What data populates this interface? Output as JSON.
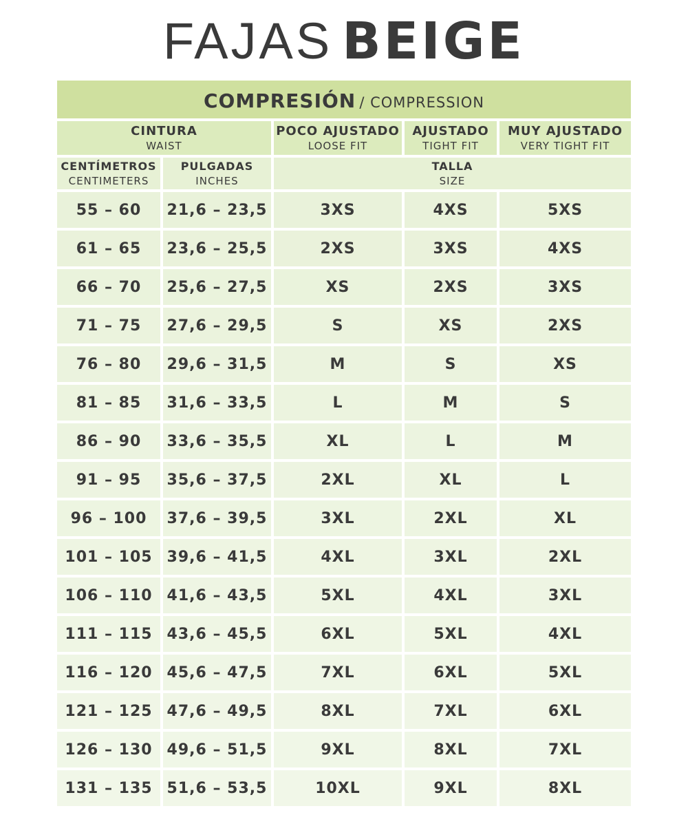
{
  "title": {
    "light": "FAJAS",
    "bold": "BEIGE"
  },
  "compression": {
    "es": "COMPRESIÓN",
    "en": "/ COMPRESSION"
  },
  "headers": {
    "waist": {
      "es": "CINTURA",
      "en": "WAIST"
    },
    "loose": {
      "es": "POCO AJUSTADO",
      "en": "LOOSE FIT"
    },
    "tight": {
      "es": "AJUSTADO",
      "en": "TIGHT FIT"
    },
    "very_tight": {
      "es": "MUY AJUSTADO",
      "en": "VERY TIGHT FIT"
    },
    "cm": {
      "es": "CENTÍMETROS",
      "en": "CENTIMETERS"
    },
    "in": {
      "es": "PULGADAS",
      "en": "INCHES"
    },
    "size": {
      "es": "TALLA",
      "en": "SIZE"
    }
  },
  "colors": {
    "title_bar": "#cfe09f",
    "header": "#dcebbd",
    "subheader": "#e7f1d5",
    "row_top": "#e9f2da",
    "row_bottom": "#f1f7e8",
    "text": "#3a3a3a"
  },
  "rows": [
    [
      "55 – 60",
      "21,6 – 23,5",
      "3XS",
      "4XS",
      "5XS"
    ],
    [
      "61 – 65",
      "23,6 – 25,5",
      "2XS",
      "3XS",
      "4XS"
    ],
    [
      "66 – 70",
      "25,6 – 27,5",
      "XS",
      "2XS",
      "3XS"
    ],
    [
      "71 – 75",
      "27,6 – 29,5",
      "S",
      "XS",
      "2XS"
    ],
    [
      "76 – 80",
      "29,6 – 31,5",
      "M",
      "S",
      "XS"
    ],
    [
      "81 – 85",
      "31,6 – 33,5",
      "L",
      "M",
      "S"
    ],
    [
      "86 – 90",
      "33,6 – 35,5",
      "XL",
      "L",
      "M"
    ],
    [
      "91 – 95",
      "35,6 – 37,5",
      "2XL",
      "XL",
      "L"
    ],
    [
      "96 – 100",
      "37,6 – 39,5",
      "3XL",
      "2XL",
      "XL"
    ],
    [
      "101 – 105",
      "39,6 – 41,5",
      "4XL",
      "3XL",
      "2XL"
    ],
    [
      "106 – 110",
      "41,6 – 43,5",
      "5XL",
      "4XL",
      "3XL"
    ],
    [
      "111 – 115",
      "43,6 – 45,5",
      "6XL",
      "5XL",
      "4XL"
    ],
    [
      "116 – 120",
      "45,6 – 47,5",
      "7XL",
      "6XL",
      "5XL"
    ],
    [
      "121 – 125",
      "47,6 – 49,5",
      "8XL",
      "7XL",
      "6XL"
    ],
    [
      "126 – 130",
      "49,6 – 51,5",
      "9XL",
      "8XL",
      "7XL"
    ],
    [
      "131 – 135",
      "51,6 – 53,5",
      "10XL",
      "9XL",
      "8XL"
    ]
  ]
}
